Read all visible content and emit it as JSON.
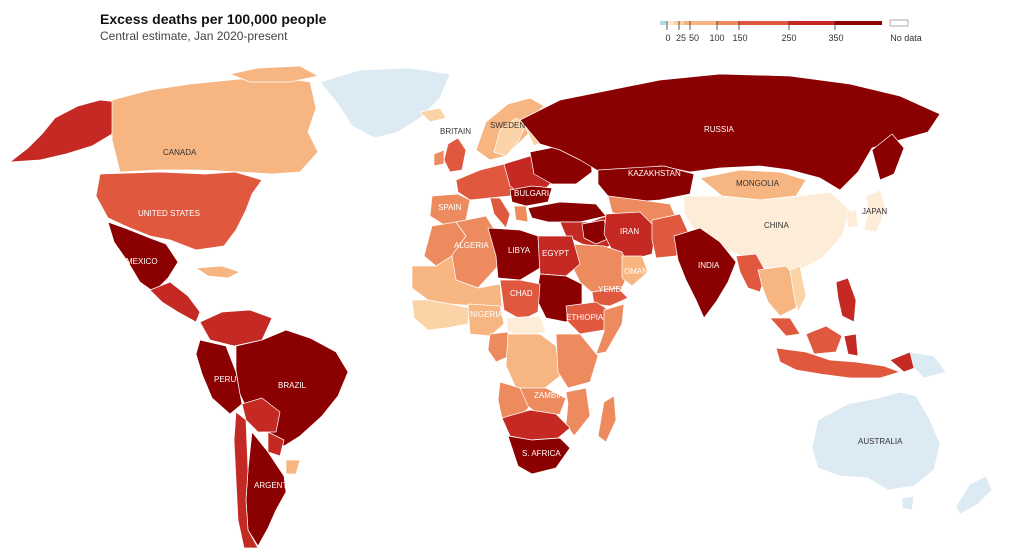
{
  "title": "Excess deaths per 100,000 people",
  "subtitle": "Central estimate, Jan 2020-present",
  "legend": {
    "ticks": [
      "0",
      "25",
      "50",
      "100",
      "150",
      "250",
      "350"
    ],
    "no_data_label": "No data",
    "colors": {
      "negative": "#a9d8ea",
      "b0_25": "#fde9cf",
      "b25_50": "#fbd3a6",
      "b50_100": "#f7b582",
      "b100_150": "#ee8b5e",
      "b150_250": "#e0593f",
      "b250_350": "#c42a23",
      "b350_plus": "#8b0000",
      "no_data": "#ffffff",
      "light_blue": "#dceaf3",
      "cream": "#fdecd8"
    }
  },
  "countries": {
    "canada": "CANADA",
    "united_states": "UNITED STATES",
    "mexico": "MEXICO",
    "peru": "PERU",
    "brazil": "BRAZIL",
    "argentina": "ARGENTINA",
    "britain": "BRITAIN",
    "sweden": "SWEDEN",
    "spain": "SPAIN",
    "bulgaria": "BULGARIA",
    "russia": "RUSSIA",
    "kazakhstan": "KAZAKHSTAN",
    "mongolia": "MONGOLIA",
    "china": "CHINA",
    "japan": "JAPAN",
    "india": "INDIA",
    "iran": "IRAN",
    "oman": "OMAN",
    "yemen": "YEMEN",
    "algeria": "ALGERIA",
    "libya": "LIBYA",
    "egypt": "EGYPT",
    "chad": "CHAD",
    "nigeria": "NIGERIA",
    "ethiopia": "ETHIOPIA",
    "zambia": "ZAMBIA",
    "s_africa": "S. AFRICA",
    "australia": "AUSTRALIA"
  }
}
